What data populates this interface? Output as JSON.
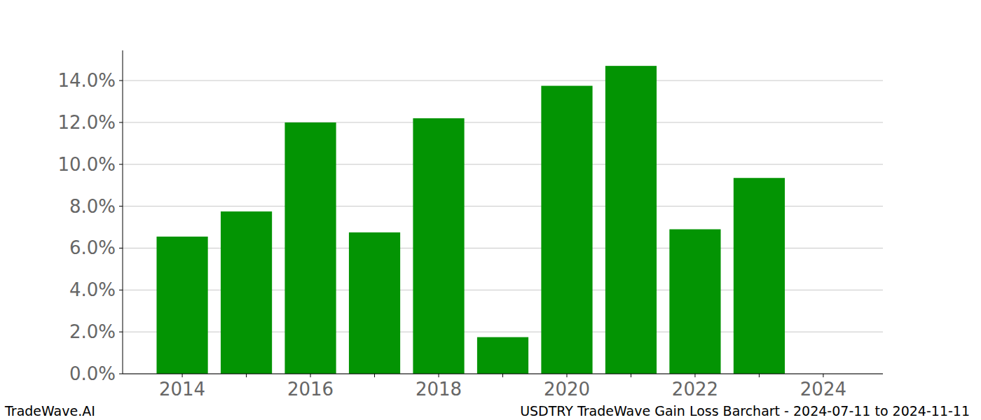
{
  "chart_data": {
    "type": "bar",
    "title": "USDTRY TradeWave Gain Loss Barchart - 2024-07-11 to 2024-11-11",
    "brand": "TradeWave.AI",
    "categories": [
      "2014",
      null,
      "2016",
      null,
      "2018",
      null,
      "2020",
      null,
      "2022",
      null,
      "2024"
    ],
    "values": [
      6.55,
      7.75,
      12.0,
      6.75,
      12.2,
      1.75,
      13.75,
      14.7,
      6.9,
      9.35,
      0
    ],
    "color": "#039403",
    "ylim": [
      0,
      15.44
    ],
    "yticks": [
      {
        "value": 0,
        "label": "0.0%"
      },
      {
        "value": 2,
        "label": "2.0%"
      },
      {
        "value": 4,
        "label": "4.0%"
      },
      {
        "value": 6,
        "label": "6.0%"
      },
      {
        "value": 8,
        "label": "8.0%"
      },
      {
        "value": 10,
        "label": "10.0%"
      },
      {
        "value": 12,
        "label": "12.0%"
      },
      {
        "value": 14,
        "label": "14.0%"
      }
    ],
    "grid": true
  }
}
